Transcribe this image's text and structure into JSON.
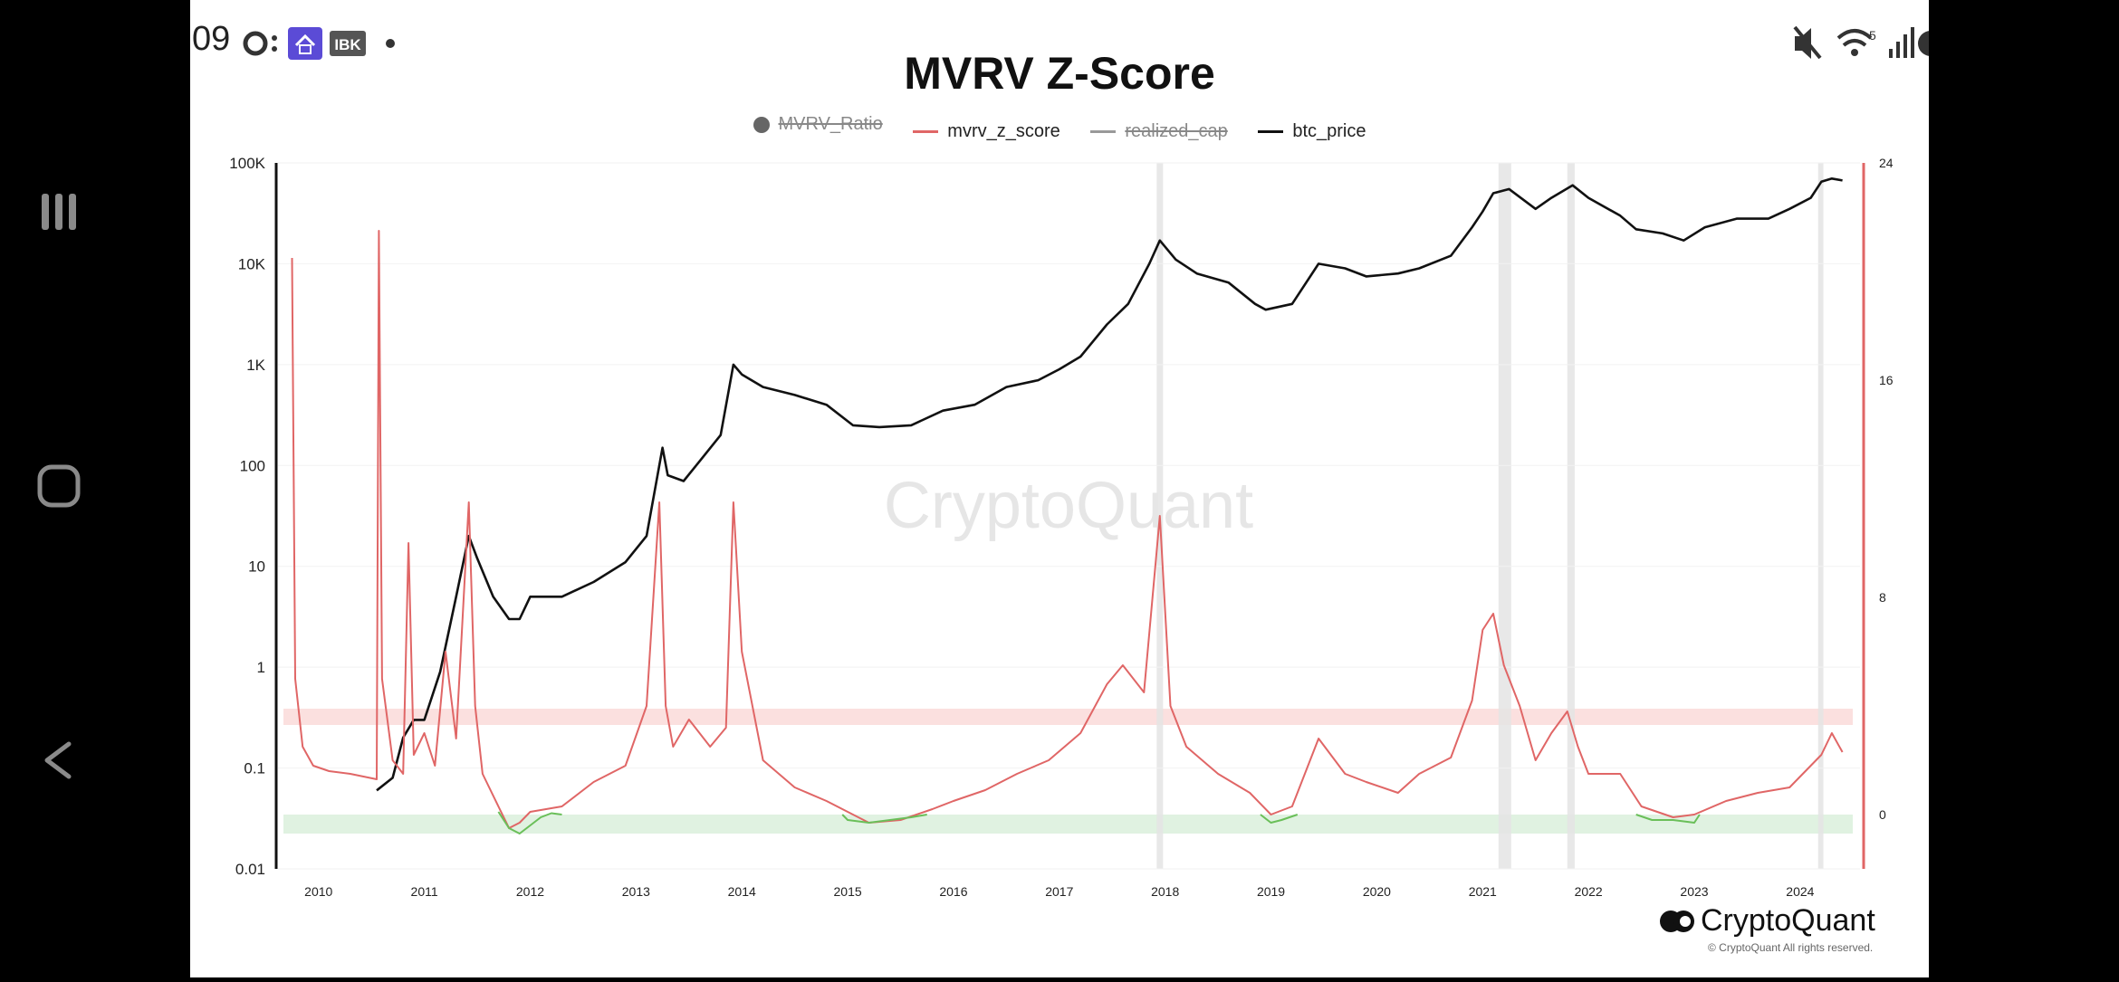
{
  "status_bar": {
    "time": "09",
    "app_badge": "IBK"
  },
  "chart_data": {
    "type": "line",
    "title": "MVRV Z-Score",
    "watermark": "CryptoQuant",
    "legend": [
      {
        "name": "MVRV_Ratio",
        "enabled": false,
        "marker": "dot",
        "color": "#666666"
      },
      {
        "name": "mvrv_z_score",
        "enabled": true,
        "marker": "line",
        "color": "#e06666"
      },
      {
        "name": "realized_cap",
        "enabled": false,
        "marker": "line",
        "color": "#888888"
      },
      {
        "name": "btc_price",
        "enabled": true,
        "marker": "line",
        "color": "#111111"
      }
    ],
    "x_ticks": [
      "2010",
      "2011",
      "2012",
      "2013",
      "2014",
      "2015",
      "2016",
      "2017",
      "2018",
      "2019",
      "2020",
      "2021",
      "2022",
      "2023",
      "2024"
    ],
    "xlim": [
      2009.6,
      2024.6
    ],
    "y_left": {
      "scale": "log",
      "range": [
        0.01,
        100000
      ],
      "ticks": [
        {
          "v": 100000,
          "label": "100K"
        },
        {
          "v": 10000,
          "label": "10K"
        },
        {
          "v": 1000,
          "label": "1K"
        },
        {
          "v": 100,
          "label": "100"
        },
        {
          "v": 10,
          "label": "10"
        },
        {
          "v": 1,
          "label": "1"
        },
        {
          "v": 0.1,
          "label": "0.1"
        },
        {
          "v": 0.01,
          "label": "0.01"
        }
      ]
    },
    "y_right": {
      "range": [
        -2,
        24
      ],
      "ticks": [
        {
          "v": 24,
          "label": "24"
        },
        {
          "v": 16,
          "label": "16"
        },
        {
          "v": 8,
          "label": "8"
        },
        {
          "v": 0,
          "label": "0"
        }
      ]
    },
    "bands": {
      "red_zone": [
        3.3,
        3.9
      ],
      "green_zone": [
        -0.7,
        0.0
      ]
    },
    "series": [
      {
        "name": "btc_price",
        "axis": "left",
        "color": "#111111",
        "x": [
          2010.55,
          2010.7,
          2010.8,
          2010.9,
          2011.0,
          2011.15,
          2011.3,
          2011.42,
          2011.5,
          2011.65,
          2011.8,
          2011.9,
          2012.0,
          2012.3,
          2012.6,
          2012.9,
          2013.1,
          2013.25,
          2013.3,
          2013.45,
          2013.6,
          2013.8,
          2013.92,
          2014.0,
          2014.2,
          2014.5,
          2014.8,
          2015.05,
          2015.3,
          2015.6,
          2015.9,
          2016.2,
          2016.5,
          2016.8,
          2017.0,
          2017.2,
          2017.45,
          2017.65,
          2017.85,
          2017.95,
          2018.1,
          2018.3,
          2018.6,
          2018.85,
          2018.95,
          2019.2,
          2019.45,
          2019.7,
          2019.9,
          2020.2,
          2020.4,
          2020.7,
          2020.9,
          2021.0,
          2021.1,
          2021.25,
          2021.5,
          2021.65,
          2021.85,
          2022.0,
          2022.3,
          2022.45,
          2022.7,
          2022.9,
          2023.1,
          2023.4,
          2023.7,
          2023.9,
          2024.1,
          2024.2,
          2024.3,
          2024.4
        ],
        "y": [
          0.06,
          0.08,
          0.2,
          0.3,
          0.3,
          0.9,
          5,
          20,
          12,
          5,
          3,
          3,
          5,
          5,
          7,
          11,
          20,
          150,
          80,
          70,
          110,
          200,
          1000,
          800,
          600,
          500,
          400,
          250,
          240,
          250,
          350,
          400,
          600,
          700,
          900,
          1200,
          2500,
          4000,
          10000,
          17000,
          11000,
          8000,
          6500,
          4000,
          3500,
          4000,
          10000,
          9000,
          7500,
          8000,
          9000,
          12000,
          23000,
          33000,
          50000,
          55000,
          35000,
          45000,
          60000,
          45000,
          30000,
          22000,
          20000,
          17000,
          23000,
          28000,
          28000,
          35000,
          45000,
          65000,
          70000,
          67000
        ]
      },
      {
        "name": "mvrv_z_score",
        "axis": "right",
        "color": "#e06666",
        "x": [
          2009.75,
          2009.78,
          2009.85,
          2009.95,
          2010.1,
          2010.3,
          2010.55,
          2010.57,
          2010.6,
          2010.7,
          2010.8,
          2010.85,
          2010.9,
          2011.0,
          2011.1,
          2011.2,
          2011.3,
          2011.42,
          2011.48,
          2011.55,
          2011.7,
          2011.8,
          2011.9,
          2012.0,
          2012.3,
          2012.6,
          2012.9,
          2013.1,
          2013.22,
          2013.28,
          2013.35,
          2013.5,
          2013.7,
          2013.85,
          2013.92,
          2014.0,
          2014.2,
          2014.5,
          2014.8,
          2015.0,
          2015.2,
          2015.5,
          2015.8,
          2016.0,
          2016.3,
          2016.6,
          2016.9,
          2017.2,
          2017.45,
          2017.6,
          2017.8,
          2017.95,
          2018.05,
          2018.2,
          2018.5,
          2018.8,
          2019.0,
          2019.2,
          2019.45,
          2019.7,
          2019.9,
          2020.2,
          2020.4,
          2020.7,
          2020.9,
          2021.0,
          2021.1,
          2021.2,
          2021.35,
          2021.5,
          2021.65,
          2021.8,
          2021.9,
          2022.0,
          2022.3,
          2022.5,
          2022.8,
          2023.0,
          2023.3,
          2023.6,
          2023.9,
          2024.1,
          2024.2,
          2024.3,
          2024.4
        ],
        "y": [
          20.5,
          5,
          2.5,
          1.8,
          1.6,
          1.5,
          1.3,
          21.5,
          5,
          2,
          1.5,
          10,
          2.2,
          3,
          1.8,
          6,
          2.8,
          11.5,
          4,
          1.5,
          0.3,
          -0.5,
          -0.3,
          0.1,
          0.3,
          1.2,
          1.8,
          4,
          11.5,
          4,
          2.5,
          3.5,
          2.5,
          3.2,
          11.5,
          6,
          2,
          1,
          0.5,
          0.1,
          -0.3,
          -0.2,
          0.2,
          0.5,
          0.9,
          1.5,
          2,
          3,
          4.8,
          5.5,
          4.5,
          11,
          4,
          2.5,
          1.5,
          0.8,
          0,
          0.3,
          2.8,
          1.5,
          1.2,
          0.8,
          1.5,
          2.1,
          4.2,
          6.8,
          7.4,
          5.5,
          4,
          2,
          3,
          3.8,
          2.5,
          1.5,
          1.5,
          0.3,
          -0.1,
          0,
          0.5,
          0.8,
          1,
          1.8,
          2.2,
          3,
          2.3
        ]
      },
      {
        "name": "mvrv_z_score_low",
        "axis": "right",
        "color": "#6abf59",
        "segments": [
          {
            "x": [
              2011.7,
              2011.8,
              2011.9,
              2012.0,
              2012.1,
              2012.2,
              2012.3
            ],
            "y": [
              0.1,
              -0.5,
              -0.7,
              -0.4,
              -0.1,
              0.05,
              0.0
            ]
          },
          {
            "x": [
              2014.95,
              2015.0,
              2015.2,
              2015.4,
              2015.6,
              2015.75
            ],
            "y": [
              0.0,
              -0.2,
              -0.3,
              -0.2,
              -0.1,
              0.0
            ]
          },
          {
            "x": [
              2018.9,
              2019.0,
              2019.1,
              2019.25
            ],
            "y": [
              0.0,
              -0.3,
              -0.2,
              0.0
            ]
          },
          {
            "x": [
              2022.45,
              2022.6,
              2022.8,
              2023.0,
              2023.05
            ],
            "y": [
              0.0,
              -0.2,
              -0.2,
              -0.3,
              0.0
            ]
          }
        ]
      }
    ],
    "highlight_periods": [
      [
        2017.92,
        2017.98
      ],
      [
        2021.15,
        2021.27
      ],
      [
        2021.8,
        2021.87
      ],
      [
        2024.17,
        2024.22
      ]
    ],
    "footer": {
      "brand": "CryptoQuant",
      "copyright": "© CryptoQuant All rights reserved."
    }
  }
}
